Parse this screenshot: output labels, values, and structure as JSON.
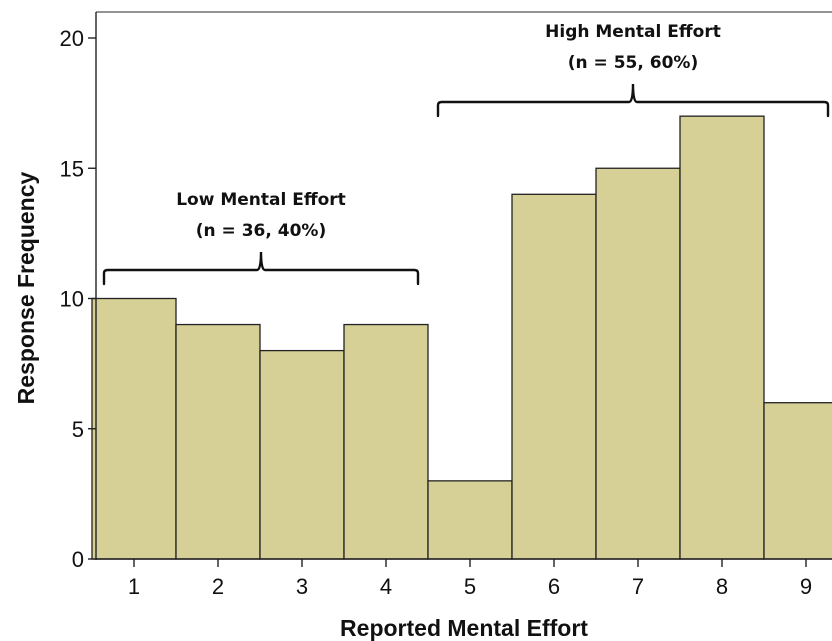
{
  "chart_data": {
    "type": "bar",
    "title": "",
    "xlabel": "Reported Mental Effort",
    "ylabel": "Response Frequency",
    "categories": [
      "1",
      "2",
      "3",
      "4",
      "5",
      "6",
      "7",
      "8",
      "9"
    ],
    "values": [
      10,
      9,
      8,
      9,
      3,
      14,
      15,
      17,
      6
    ],
    "ylim": [
      0,
      20
    ],
    "yticks": [
      "0",
      "5",
      "10",
      "15",
      "20"
    ],
    "grid": false,
    "bar_color": "#d6d097",
    "bar_edge_color": "#222222",
    "annotations": [
      {
        "label": "Low Mental Effort",
        "detail": "(n = 36, 40%)",
        "from_category": "1",
        "to_category": "4"
      },
      {
        "label": "High Mental Effort",
        "detail": "(n = 55, 60%)",
        "from_category": "5",
        "to_category": "9"
      }
    ]
  }
}
